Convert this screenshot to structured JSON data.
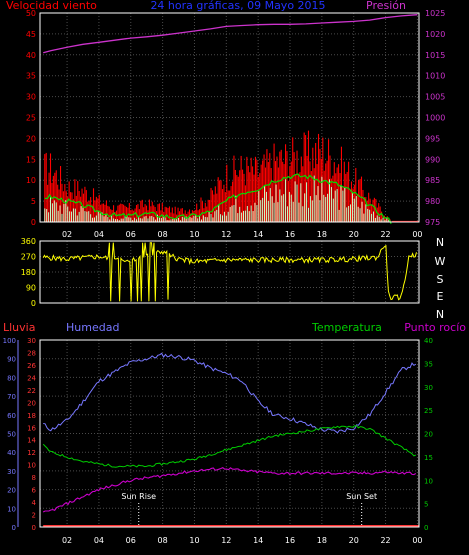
{
  "title": "24 hora gráficas, 09 Mayo 2015",
  "colors": {
    "bg": "#000000",
    "frame": "#ffffff",
    "grid": "#4a4a4a",
    "wind": "#ff0000",
    "gust": "#00dd00",
    "calm": "#c8ffc8",
    "pressure": "#cc33cc",
    "direction": "#ffff00",
    "rain": "#ff3333",
    "humidity": "#7777ff",
    "temperature": "#00cc00",
    "dewpoint": "#cc00cc"
  },
  "x_ticks": [
    "02",
    "04",
    "06",
    "08",
    "10",
    "12",
    "14",
    "16",
    "18",
    "20",
    "22",
    "00"
  ],
  "chart_data": [
    {
      "type": "line",
      "title": "24 hora gráficas, 09 Mayo 2015",
      "left_label": "Velocidad viento",
      "right_label": "Presión",
      "left_ticks": [
        "0",
        "5",
        "10",
        "15",
        "20",
        "25",
        "30",
        "35",
        "40",
        "45",
        "50"
      ],
      "right_ticks": [
        "975",
        "980",
        "985",
        "990",
        "995",
        "1000",
        "1005",
        "1010",
        "1015",
        "1020",
        "1025"
      ],
      "left_range": [
        0,
        50
      ],
      "right_range": [
        975,
        1025
      ],
      "grid": true,
      "series": [
        {
          "key": "wind_speed_max",
          "hours": [
            1,
            2,
            3,
            4,
            5,
            6,
            7,
            8,
            9,
            10,
            11,
            12,
            13,
            14,
            15,
            16,
            17,
            18,
            19,
            20,
            21,
            22,
            22.4
          ],
          "values": [
            15,
            10,
            9,
            6,
            4,
            4,
            5,
            4,
            3,
            4,
            7,
            13,
            15,
            14,
            17,
            18,
            19,
            20,
            17,
            12,
            7,
            2,
            0
          ]
        },
        {
          "key": "wind_speed_avg",
          "hours": [
            1,
            2,
            3,
            4,
            5,
            6,
            7,
            8,
            9,
            10,
            11,
            12,
            13,
            14,
            15,
            16,
            17,
            18,
            19,
            20,
            21,
            22,
            22.4
          ],
          "values": [
            6,
            5,
            4,
            2.5,
            1.5,
            1.5,
            2,
            1.5,
            1,
            1.5,
            2.5,
            5,
            7,
            8,
            10,
            11,
            11,
            10,
            9,
            7,
            4,
            1,
            0
          ]
        },
        {
          "key": "pressure",
          "hours": [
            0.5,
            1,
            2,
            3,
            4,
            5,
            6,
            7,
            8,
            9,
            10,
            11,
            12,
            13,
            14,
            15,
            16,
            17,
            18,
            19,
            20,
            21,
            22,
            23,
            24
          ],
          "values": [
            1015.5,
            1016,
            1016.8,
            1017.5,
            1018,
            1018.5,
            1019,
            1019.3,
            1019.7,
            1020.2,
            1020.7,
            1021.2,
            1021.8,
            1022,
            1022.2,
            1022.3,
            1022.3,
            1022.4,
            1022.6,
            1022.8,
            1023,
            1023.3,
            1023.9,
            1024.3,
            1024.6
          ]
        }
      ]
    },
    {
      "type": "line",
      "title": "",
      "left_ticks": [
        "0",
        "90",
        "180",
        "270",
        "360"
      ],
      "right_ticks": [
        "N",
        "W",
        "S",
        "E",
        "N"
      ],
      "left_range": [
        0,
        360
      ],
      "series": [
        {
          "key": "wind_direction",
          "hours": [
            0.5,
            2,
            4,
            5,
            6,
            7,
            8,
            9,
            10,
            12,
            14,
            16,
            18,
            20,
            21.5,
            22,
            22.2,
            23,
            23.5,
            24
          ],
          "values": [
            265,
            255,
            270,
            250,
            255,
            270,
            300,
            255,
            240,
            250,
            250,
            250,
            250,
            255,
            265,
            350,
            30,
            35,
            280,
            280
          ]
        }
      ]
    },
    {
      "type": "line",
      "title": "",
      "labels": {
        "rain": "Lluvia",
        "humidity": "Humedad",
        "temperature": "Temperatura",
        "dewpoint": "Punto rocío"
      },
      "rain_ticks": [
        "0",
        "2",
        "4",
        "6",
        "8",
        "10",
        "12",
        "14",
        "16",
        "18",
        "20",
        "22",
        "24",
        "26",
        "28",
        "30"
      ],
      "humidity_ticks": [
        "0",
        "10",
        "20",
        "30",
        "40",
        "50",
        "60",
        "70",
        "80",
        "90",
        "100"
      ],
      "temp_ticks": [
        "0",
        "5",
        "10",
        "15",
        "20",
        "25",
        "30",
        "35",
        "40"
      ],
      "humidity_range": [
        0,
        100
      ],
      "temp_range": [
        0,
        40
      ],
      "annotations": [
        {
          "text": "Sun Rise",
          "hour": 6.5
        },
        {
          "text": "Sun Set",
          "hour": 20.5
        }
      ],
      "series": [
        {
          "key": "rain",
          "hours": [
            0.5,
            24
          ],
          "values": [
            0,
            0
          ]
        },
        {
          "key": "humidity",
          "hours": [
            0.5,
            1,
            2,
            3,
            4,
            5,
            6,
            7,
            8,
            9,
            10,
            11,
            12,
            13,
            14,
            15,
            16,
            17,
            18,
            19,
            20,
            21,
            22,
            23,
            24
          ],
          "values": [
            55,
            52,
            57,
            67,
            78,
            83,
            88,
            90,
            92,
            91,
            89,
            85,
            82,
            78,
            67,
            60,
            58,
            55,
            52,
            51,
            53,
            60,
            72,
            84,
            88
          ]
        },
        {
          "key": "temperature",
          "hours": [
            0.5,
            1,
            2,
            3,
            4,
            5,
            6,
            7,
            8,
            9,
            10,
            11,
            12,
            13,
            14,
            15,
            16,
            17,
            18,
            19,
            20,
            21,
            22,
            23,
            24
          ],
          "values": [
            17.5,
            16,
            15,
            14,
            13.5,
            13,
            13,
            13,
            13.5,
            14,
            14.5,
            15.5,
            16.5,
            17.5,
            18.5,
            19.5,
            20,
            20.5,
            21,
            21.5,
            21.5,
            21,
            19,
            17,
            15
          ]
        },
        {
          "key": "dewpoint",
          "hours": [
            0.5,
            1,
            2,
            3,
            4,
            5,
            6,
            7,
            8,
            9,
            10,
            11,
            12,
            13,
            14,
            15,
            16,
            17,
            18,
            19,
            20,
            21,
            22,
            23,
            24
          ],
          "values": [
            3,
            3.5,
            5,
            6.5,
            8,
            9,
            10,
            10.5,
            11,
            11.5,
            12,
            12.3,
            12.6,
            12,
            11.8,
            11.5,
            11.5,
            11.5,
            11.5,
            11.5,
            11.5,
            11.5,
            11.8,
            11.5,
            11.5
          ]
        }
      ]
    }
  ]
}
